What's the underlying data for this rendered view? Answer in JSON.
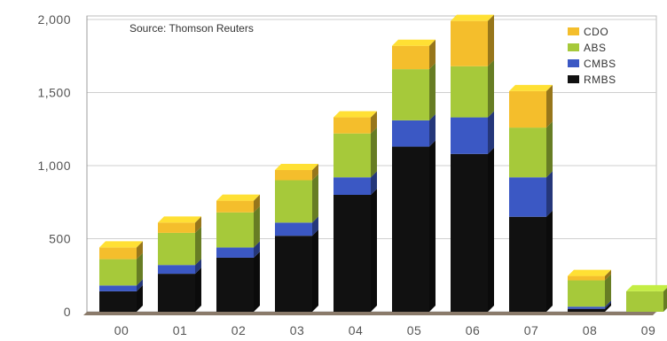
{
  "chart_data": {
    "type": "bar",
    "stacked": true,
    "style": "3d",
    "annotation": "Source: Thomson Reuters",
    "categories": [
      "00",
      "01",
      "02",
      "03",
      "04",
      "05",
      "06",
      "07",
      "08",
      "09"
    ],
    "ylim": [
      0,
      2000
    ],
    "yticks": [
      0,
      500,
      1000,
      1500,
      2000
    ],
    "ytick_labels": [
      "0",
      "500",
      "1,000",
      "1,500",
      "2,000"
    ],
    "grid": true,
    "legend_position": "top-right",
    "series": [
      {
        "name": "RMBS",
        "color": "#111111",
        "values": [
          140,
          260,
          370,
          520,
          800,
          1130,
          1080,
          650,
          20,
          0
        ]
      },
      {
        "name": "CMBS",
        "color": "#3b58c4",
        "values": [
          40,
          60,
          70,
          90,
          120,
          180,
          250,
          270,
          15,
          0
        ]
      },
      {
        "name": "ABS",
        "color": "#a6c93a",
        "values": [
          180,
          220,
          240,
          290,
          300,
          350,
          350,
          340,
          180,
          140
        ]
      },
      {
        "name": "CDO",
        "color": "#f4be2c",
        "values": [
          80,
          70,
          80,
          70,
          110,
          160,
          310,
          250,
          30,
          0
        ]
      }
    ],
    "legend_order": [
      "CDO",
      "ABS",
      "CMBS",
      "RMBS"
    ]
  }
}
